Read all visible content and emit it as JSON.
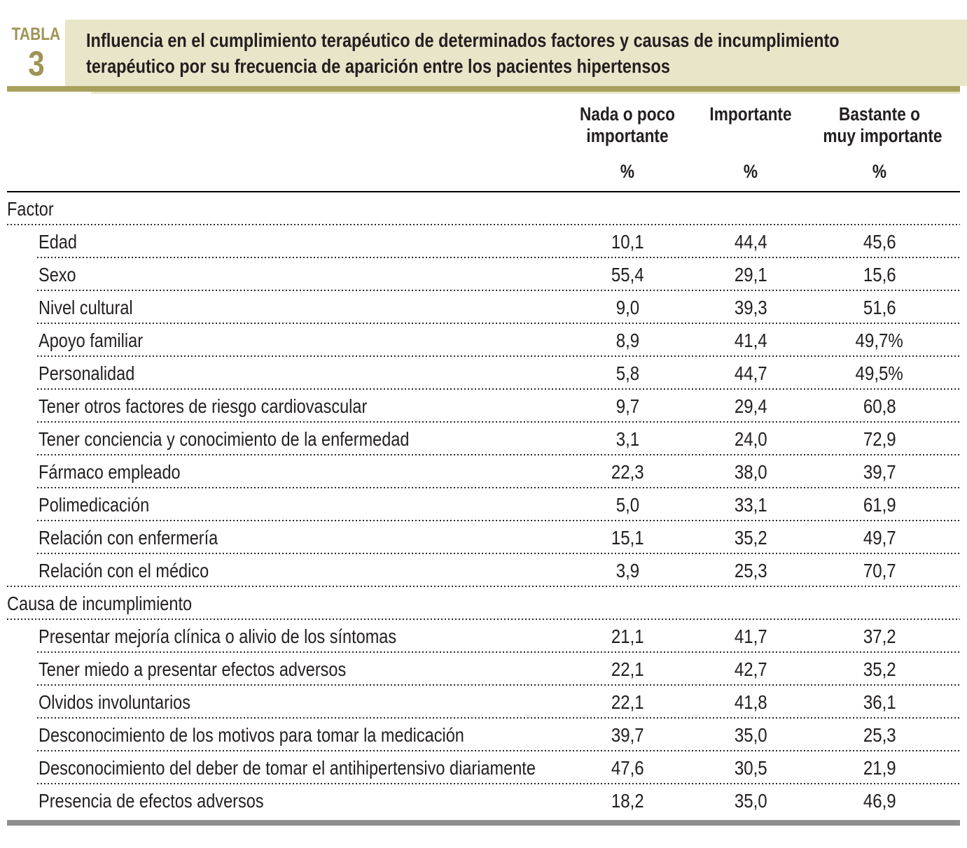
{
  "theme": {
    "accent_text": "#9E9455",
    "accent_bar": "#A8A05C",
    "band_bg": "#E9E5C9",
    "text": "#231F20",
    "dot": "#2B2B2B",
    "rule": "#000000",
    "bottom_bar": "#8E8E8E"
  },
  "badge": {
    "word": "TABLA",
    "number": "3"
  },
  "title": {
    "line1": "Influencia en el cumplimiento terapéutico de determinados factores y causas de incumplimiento",
    "line2": "terapéutico por su frecuencia de aparición entre los pacientes hipertensos"
  },
  "columns": [
    {
      "line1": "Nada o poco",
      "line2": "importante",
      "unit": "%"
    },
    {
      "line1": "Importante",
      "line2": "",
      "unit": "%"
    },
    {
      "line1": "Bastante o",
      "line2": "muy importante",
      "unit": "%"
    }
  ],
  "table": {
    "rows": [
      {
        "type": "section",
        "label": "Factor"
      },
      {
        "type": "item",
        "label": "Edad",
        "values": [
          "10,1",
          "44,4",
          "45,6"
        ]
      },
      {
        "type": "item",
        "label": "Sexo",
        "values": [
          "55,4",
          "29,1",
          "15,6"
        ]
      },
      {
        "type": "item",
        "label": "Nivel cultural",
        "values": [
          "9,0",
          "39,3",
          "51,6"
        ]
      },
      {
        "type": "item",
        "label": "Apoyo familiar",
        "values": [
          "8,9",
          "41,4",
          "49,7%"
        ]
      },
      {
        "type": "item",
        "label": "Personalidad",
        "values": [
          "5,8",
          "44,7",
          "49,5%"
        ]
      },
      {
        "type": "item",
        "label": "Tener otros factores de riesgo cardiovascular",
        "values": [
          "9,7",
          "29,4",
          "60,8"
        ]
      },
      {
        "type": "item",
        "label": "Tener conciencia y conocimiento de la enfermedad",
        "values": [
          "3,1",
          "24,0",
          "72,9"
        ]
      },
      {
        "type": "item",
        "label": "Fármaco empleado",
        "values": [
          "22,3",
          "38,0",
          "39,7"
        ]
      },
      {
        "type": "item",
        "label": "Polimedicación",
        "values": [
          "5,0",
          "33,1",
          "61,9"
        ]
      },
      {
        "type": "item",
        "label": "Relación con enfermería",
        "values": [
          "15,1",
          "35,2",
          "49,7"
        ]
      },
      {
        "type": "item",
        "label": "Relación con el médico",
        "values": [
          "3,9",
          "25,3",
          "70,7"
        ]
      },
      {
        "type": "section",
        "label": "Causa de incumplimiento"
      },
      {
        "type": "item",
        "label": "Presentar mejoría clínica o alivio de los síntomas",
        "values": [
          "21,1",
          "41,7",
          "37,2"
        ]
      },
      {
        "type": "item",
        "label": "Tener miedo a presentar efectos adversos",
        "values": [
          "22,1",
          "42,7",
          "35,2"
        ]
      },
      {
        "type": "item",
        "label": "Olvidos involuntarios",
        "values": [
          "22,1",
          "41,8",
          "36,1"
        ]
      },
      {
        "type": "item",
        "label": "Desconocimiento de los motivos para tomar la medicación",
        "values": [
          "39,7",
          "35,0",
          "25,3"
        ]
      },
      {
        "type": "item",
        "label": "Desconocimiento del deber de tomar el antihipertensivo diariamente",
        "values": [
          "47,6",
          "30,5",
          "21,9"
        ]
      },
      {
        "type": "item",
        "label": "Presencia de efectos adversos",
        "values": [
          "18,2",
          "35,0",
          "46,9"
        ]
      }
    ]
  }
}
